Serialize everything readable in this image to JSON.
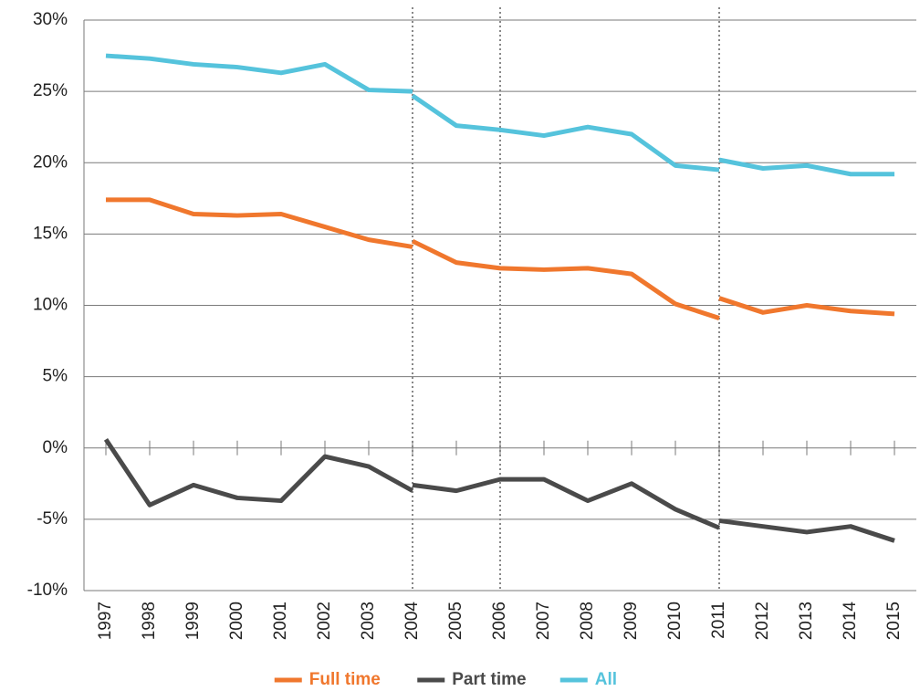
{
  "chart_data": {
    "type": "line",
    "x": [
      1997,
      1998,
      1999,
      2000,
      2001,
      2002,
      2003,
      2004,
      2004,
      2004,
      2005,
      2006,
      2007,
      2008,
      2009,
      2010,
      2011,
      2011,
      2011,
      2012,
      2013,
      2014,
      2015
    ],
    "series": [
      {
        "name": "Full time",
        "color": "#f0772d",
        "values": [
          17.4,
          17.4,
          16.4,
          16.3,
          16.4,
          15.5,
          14.6,
          14.1,
          null,
          14.5,
          13.0,
          12.6,
          12.5,
          12.6,
          12.2,
          10.1,
          9.1,
          null,
          10.5,
          9.5,
          10.0,
          9.6,
          9.4
        ]
      },
      {
        "name": "Part time",
        "color": "#4a4a4a",
        "values": [
          0.6,
          -4.0,
          -2.6,
          -3.5,
          -3.7,
          -0.6,
          -1.3,
          -3.0,
          null,
          -2.6,
          -3.0,
          -2.2,
          -2.2,
          -3.7,
          -2.5,
          -4.3,
          -5.6,
          null,
          -5.1,
          -5.5,
          -5.9,
          -5.5,
          -6.5
        ]
      },
      {
        "name": "All",
        "color": "#55c3dc",
        "values": [
          27.5,
          27.3,
          26.9,
          26.7,
          26.3,
          26.9,
          25.1,
          25.0,
          null,
          24.7,
          22.6,
          22.3,
          21.9,
          22.5,
          22.0,
          19.8,
          19.5,
          null,
          20.2,
          19.6,
          19.8,
          19.2,
          19.2
        ]
      }
    ],
    "xlim": [
      1996.5,
      2015.5
    ],
    "xticks": [
      1997,
      1998,
      1999,
      2000,
      2001,
      2002,
      2003,
      2004,
      2005,
      2006,
      2007,
      2008,
      2009,
      2010,
      2011,
      2012,
      2013,
      2014,
      2015
    ],
    "ylim": [
      -10,
      30
    ],
    "yticks": [
      {
        "value": -10,
        "label": "-10%"
      },
      {
        "value": -5,
        "label": "-5%"
      },
      {
        "value": 0,
        "label": "0%"
      },
      {
        "value": 5,
        "label": "5%"
      },
      {
        "value": 10,
        "label": "10%"
      },
      {
        "value": 15,
        "label": "15%"
      },
      {
        "value": 20,
        "label": "20%"
      },
      {
        "value": 25,
        "label": "25%"
      },
      {
        "value": 30,
        "label": "30%"
      }
    ],
    "vlines": [
      2004,
      2006,
      2011
    ],
    "grid": true,
    "legend": "bottom"
  }
}
